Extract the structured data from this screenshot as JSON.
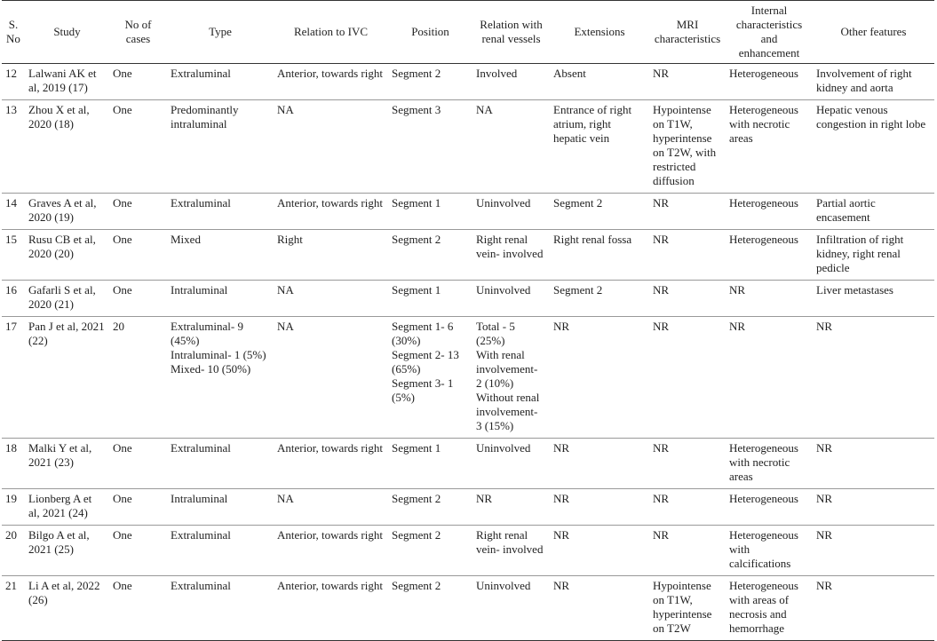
{
  "table": {
    "header": [
      "S. No",
      "Study",
      "No of cases",
      "Type",
      "Relation to IVC",
      "Position",
      "Relation with renal vessels",
      "Extensions",
      "MRI characteristics",
      "Internal characteristics and enhancement",
      "Other features"
    ],
    "rows": [
      [
        "12",
        "Lalwani AK et al, 2019 (17)",
        "One",
        "Extraluminal",
        "Anterior, towards right",
        "Segment 2",
        "Involved",
        "Absent",
        "NR",
        "Heterogeneous",
        "Involvement of right kidney and aorta"
      ],
      [
        "13",
        "Zhou X et al, 2020 (18)",
        "One",
        "Predominantly intraluminal",
        "NA",
        "Segment 3",
        "NA",
        "Entrance of right atrium, right hepatic vein",
        "Hypointense on T1W, hyperintense on T2W, with restricted diffusion",
        "Heterogeneous with necrotic areas",
        "Hepatic venous congestion in right lobe"
      ],
      [
        "14",
        "Graves A et al, 2020 (19)",
        "One",
        "Extraluminal",
        "Anterior, towards right",
        "Segment 1",
        "Uninvolved",
        "Segment 2",
        "NR",
        "Heterogeneous",
        "Partial aortic encasement"
      ],
      [
        "15",
        "Rusu CB et al, 2020 (20)",
        "One",
        "Mixed",
        "Right",
        "Segment 2",
        "Right renal vein- involved",
        "Right renal fossa",
        "NR",
        "Heterogeneous",
        "Infiltration of right kidney, right renal pedicle"
      ],
      [
        "16",
        "Gafarli S et al, 2020 (21)",
        "One",
        "Intraluminal",
        "NA",
        "Segment 1",
        "Uninvolved",
        "Segment 2",
        "NR",
        "NR",
        "Liver metastases"
      ],
      [
        "17",
        "Pan J et al, 2021 (22)",
        "20",
        "Extraluminal- 9 (45%)\nIntraluminal- 1 (5%)\nMixed- 10 (50%)",
        "NA",
        "Segment 1- 6 (30%)\nSegment 2- 13 (65%)\nSegment 3- 1 (5%)",
        "Total - 5 (25%)\nWith renal involvement- 2 (10%)\nWithout renal involvement- 3 (15%)",
        "NR",
        "NR",
        "NR",
        "NR"
      ],
      [
        "18",
        "Malki Y et al, 2021 (23)",
        "One",
        "Extraluminal",
        "Anterior, towards right",
        "Segment 1",
        "Uninvolved",
        "NR",
        "NR",
        "Heterogeneous with necrotic areas",
        "NR"
      ],
      [
        "19",
        "Lionberg A et al, 2021 (24)",
        "One",
        "Intraluminal",
        "NA",
        "Segment 2",
        "NR",
        "NR",
        "NR",
        "Heterogeneous",
        "NR"
      ],
      [
        "20",
        "Bilgo A et al, 2021 (25)",
        "One",
        "Extraluminal",
        "Anterior, towards right",
        "Segment 2",
        "Right renal vein- involved",
        "NR",
        "NR",
        "Heterogeneous with calcifications",
        "NR"
      ],
      [
        "21",
        "Li A et al, 2022 (26)",
        "One",
        "Extraluminal",
        "Anterior, towards right",
        "Segment 2",
        "Uninvolved",
        "NR",
        "Hypointense on T1W, hyperintense on T2W",
        "Heterogeneous with areas of necrosis and hemorrhage",
        "NR"
      ]
    ]
  }
}
